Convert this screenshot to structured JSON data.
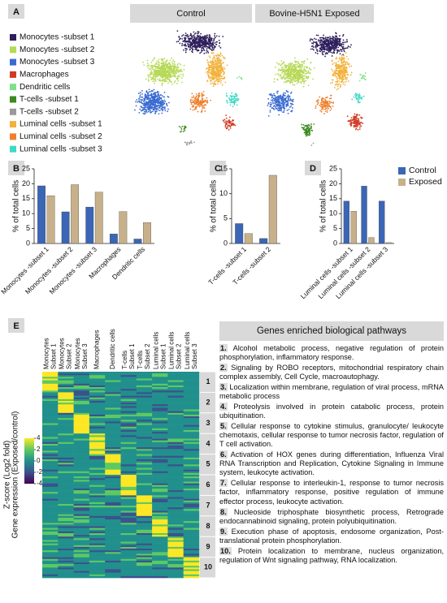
{
  "panel_labels": [
    "A",
    "B",
    "C",
    "D",
    "E"
  ],
  "tsne": {
    "titles": [
      "Control",
      "Bovine-H5N1 Exposed"
    ],
    "legend": [
      {
        "name": "Monocytes -subset 1",
        "color": "#2e1f5c"
      },
      {
        "name": "Monocytes -subset 2",
        "color": "#b6d957"
      },
      {
        "name": "Monocytes -subset 3",
        "color": "#3a6bd1"
      },
      {
        "name": "Macrophages",
        "color": "#d13a25"
      },
      {
        "name": "Dendritic cells",
        "color": "#7de08a"
      },
      {
        "name": "T-cells -subset 1",
        "color": "#3c8a1f"
      },
      {
        "name": "T-cells -subset 2",
        "color": "#9a9a9a"
      },
      {
        "name": "Luminal cells -subset 1",
        "color": "#f2b23c"
      },
      {
        "name": "Luminal cells -subset 2",
        "color": "#ee7f2d"
      },
      {
        "name": "Luminal cells -subset 3",
        "color": "#3fd9c4"
      }
    ]
  },
  "chart_data": [
    {
      "type": "bar",
      "y_label": "% of total cells",
      "categories": [
        "Monocytes -subset 1",
        "Monocytes -subset 2",
        "Monocytes -subset 3",
        "Macrophages",
        "Dendritic cells"
      ],
      "series": [
        {
          "color": "#3b66b5",
          "values": [
            19.3,
            10.6,
            12.2,
            3.2,
            1.5
          ]
        },
        {
          "color": "#c7b08a",
          "values": [
            16,
            19.7,
            17.2,
            10.7,
            7
          ]
        }
      ],
      "ylim": [
        0,
        25
      ],
      "yticks": [
        0,
        5,
        10,
        15,
        20,
        25
      ]
    },
    {
      "type": "bar",
      "y_label": "% of total cells",
      "categories": [
        "T-cells -subset 1",
        "T-cells -subset 2"
      ],
      "series": [
        {
          "color": "#3b66b5",
          "values": [
            4,
            1
          ]
        },
        {
          "color": "#c7b08a",
          "values": [
            2,
            13.7
          ]
        }
      ],
      "ylim": [
        0,
        15
      ],
      "yticks": [
        0,
        5,
        10,
        15
      ]
    },
    {
      "type": "bar",
      "y_label": "% of total cells",
      "categories": [
        "Luminal cells -subset 1",
        "Luminal cells -subset 2",
        "Luminal cells -subset 3"
      ],
      "series": [
        {
          "name": "Control",
          "color": "#3b66b5",
          "values": [
            14.2,
            19.2,
            14.2
          ]
        },
        {
          "name": "Exposed",
          "color": "#c7b08a",
          "values": [
            10.8,
            2,
            0.3
          ]
        }
      ],
      "ylim": [
        0,
        25
      ],
      "yticks": [
        0,
        5,
        10,
        15,
        20,
        25
      ]
    }
  ],
  "heatmap": {
    "columns": [
      [
        "Monocytes",
        "Subset 1"
      ],
      [
        "Monocytes",
        "Subset 2"
      ],
      [
        "Monocytes",
        "Subset 3"
      ],
      [
        "Macrophages"
      ],
      [
        "Dendritic cells"
      ],
      [
        "T-cells",
        "Subset 1"
      ],
      [
        "T-cells",
        "Subset 2"
      ],
      [
        "Luminal cells",
        "Subset 1"
      ],
      [
        "Luminal cells",
        "Subset 2"
      ],
      [
        "Luminal cells",
        "Subset 3"
      ]
    ],
    "cluster_labels": [
      1,
      2,
      3,
      4,
      5,
      6,
      7,
      8,
      9,
      10
    ],
    "y_label": [
      "Z-score (Log2 fold)",
      "Gene expression (Exposed/control)"
    ],
    "colorbar_ticks": [
      4,
      2,
      0,
      -2,
      -4
    ]
  },
  "pathways": {
    "title": "Genes enriched biological pathways",
    "items": [
      {
        "number": "1.",
        "text": "Alcohol metabolic process, negative regulation of protein phosphorylation, inflammatory response."
      },
      {
        "number": "2.",
        "text": "Signaling by ROBO receptors, mitochondrial respiratory chain complex assembly, Cell Cycle, macroautophagy."
      },
      {
        "number": "3.",
        "text": "Localization within membrane, regulation of viral process, mRNA metabolic process"
      },
      {
        "number": "4.",
        "text": "Proteolysis involved in protein catabolic process, protein ubiquitination."
      },
      {
        "number": "5.",
        "text": "Cellular response to cytokine stimulus, granulocyte/ leukocyte chemotaxis, cellular response to tumor necrosis factor, regulation of T cell activation."
      },
      {
        "number": "6.",
        "text": "Activation of HOX genes during differentiation, Influenza Viral RNA Transcription and Replication, Cytokine Signaling in Immune system, leukocyte activation."
      },
      {
        "number": "7.",
        "text": "Cellular response to interleukin-1, response to tumor necrosis factor, inflammatory response, positive regulation of immune effector process, leukocyte activation."
      },
      {
        "number": "8.",
        "text": "Nucleoside triphosphate biosynthetic process, Retrograde endocannabinoid signaling, protein polyubiquitination."
      },
      {
        "number": "9.",
        "text": "Execution phase of apoptosis, endosome organization, Post-translational protein phosphorylation."
      },
      {
        "number": "10.",
        "text": "Protein localization to membrane, nucleus organization, regulation of Wnt signaling pathway, RNA localization."
      }
    ]
  }
}
